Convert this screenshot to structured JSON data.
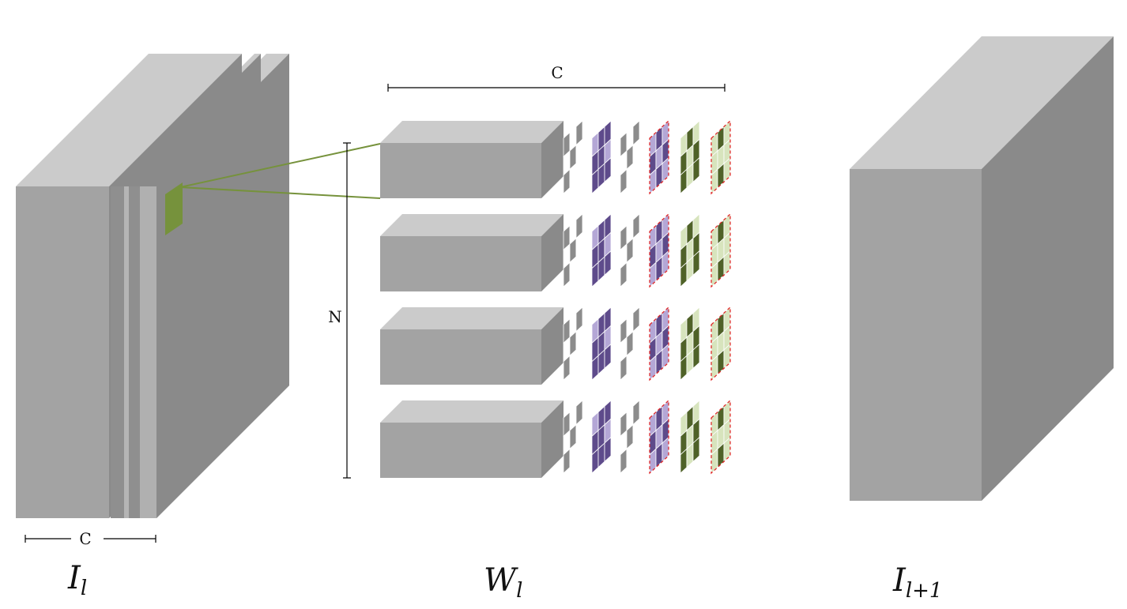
{
  "labels": {
    "input_tensor": "I",
    "input_tensor_sub": "l",
    "weights": "W",
    "weights_sub": "l",
    "output_tensor": "I",
    "output_tensor_sub": "l+1",
    "input_channel_dim": "C",
    "weight_channel_dim": "C",
    "filter_count_dim": "N"
  },
  "colors": {
    "front_face": "#a3a3a3",
    "top_face": "#cbcbcb",
    "side_face": "#8a8a8a",
    "slice_front": "#aeaeae",
    "highlight_patch": "#76923c",
    "connector_line": "#76923c",
    "purple_light": "#b4a7d6",
    "purple_dark": "#5e4b8b",
    "green_light": "#d7e4bd",
    "green_dark": "#4f6228",
    "grey_cell": "#8c8c8c",
    "dashed_outline": "#e02020",
    "dimension_line": "#000000"
  },
  "weight_rows": 4,
  "kernel_slices_per_row": 6,
  "kernel_slice_styles": [
    "grey",
    "purple",
    "grey",
    "purple-dashed",
    "green",
    "green-dashed"
  ]
}
